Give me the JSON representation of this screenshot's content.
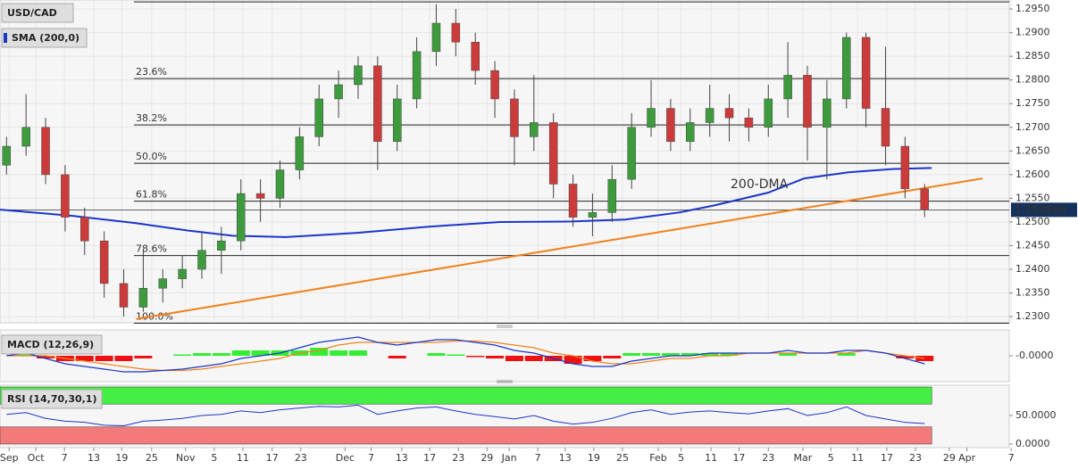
{
  "chart_data": [
    {
      "type": "candlestick",
      "title": "USD/CAD",
      "x": [
        1,
        4,
        7,
        10,
        13,
        16,
        19,
        22,
        25,
        28,
        31,
        34,
        37,
        40,
        43,
        46,
        49,
        52,
        55,
        58,
        61,
        64,
        67,
        70,
        73,
        76,
        79,
        82,
        85,
        88,
        91,
        94,
        97,
        100,
        103,
        106,
        109,
        112,
        115,
        118,
        121,
        124,
        127,
        130,
        133,
        136,
        139,
        142
      ],
      "open": [
        1.262,
        1.266,
        1.27,
        1.26,
        1.251,
        1.246,
        1.237,
        1.232,
        1.236,
        1.238,
        1.24,
        1.244,
        1.246,
        1.256,
        1.255,
        1.261,
        1.268,
        1.276,
        1.279,
        1.283,
        1.267,
        1.276,
        1.286,
        1.292,
        1.288,
        1.282,
        1.276,
        1.268,
        1.271,
        1.258,
        1.251,
        1.252,
        1.259,
        1.27,
        1.274,
        1.267,
        1.271,
        1.274,
        1.272,
        1.27,
        1.276,
        1.281,
        1.27,
        1.276,
        1.289,
        1.274,
        1.266,
        1.257
      ],
      "high": [
        1.268,
        1.277,
        1.272,
        1.262,
        1.253,
        1.248,
        1.24,
        1.244,
        1.24,
        1.243,
        1.248,
        1.249,
        1.259,
        1.259,
        1.263,
        1.27,
        1.279,
        1.282,
        1.285,
        1.285,
        1.279,
        1.289,
        1.296,
        1.295,
        1.29,
        1.284,
        1.278,
        1.281,
        1.273,
        1.26,
        1.256,
        1.262,
        1.273,
        1.28,
        1.276,
        1.274,
        1.279,
        1.277,
        1.274,
        1.279,
        1.288,
        1.283,
        1.28,
        1.29,
        1.29,
        1.287,
        1.268,
        1.258
      ],
      "low": [
        1.26,
        1.264,
        1.258,
        1.248,
        1.243,
        1.234,
        1.23,
        1.231,
        1.233,
        1.236,
        1.238,
        1.239,
        1.244,
        1.25,
        1.253,
        1.259,
        1.266,
        1.272,
        1.276,
        1.261,
        1.265,
        1.274,
        1.283,
        1.285,
        1.279,
        1.272,
        1.262,
        1.265,
        1.255,
        1.249,
        1.247,
        1.25,
        1.257,
        1.268,
        1.265,
        1.265,
        1.268,
        1.267,
        1.267,
        1.268,
        1.272,
        1.263,
        1.259,
        1.274,
        1.27,
        1.262,
        1.255,
        1.251
      ],
      "close": [
        1.266,
        1.27,
        1.26,
        1.251,
        1.246,
        1.237,
        1.232,
        1.236,
        1.238,
        1.24,
        1.244,
        1.246,
        1.256,
        1.255,
        1.261,
        1.268,
        1.276,
        1.279,
        1.283,
        1.267,
        1.276,
        1.286,
        1.292,
        1.288,
        1.282,
        1.276,
        1.268,
        1.271,
        1.258,
        1.251,
        1.252,
        1.259,
        1.27,
        1.274,
        1.267,
        1.271,
        1.274,
        1.272,
        1.27,
        1.276,
        1.281,
        1.27,
        1.276,
        1.289,
        1.274,
        1.266,
        1.257,
        1.2526
      ],
      "colors": {
        "up": "#3d9b3d",
        "down": "#cc3b3b"
      },
      "series": [
        {
          "name": "SMA (200,0)",
          "color": "#1a36c8",
          "x": [
            0,
            11,
            20.6,
            28.8,
            35.7,
            43.9,
            54.9,
            65.8,
            76.8,
            87.8,
            96,
            104.3,
            109.7,
            118,
            123.5,
            130.3,
            137.2,
            143.1
          ],
          "values": [
            1.2526,
            1.2513,
            1.2498,
            1.2482,
            1.2471,
            1.2468,
            1.2477,
            1.249,
            1.25,
            1.2501,
            1.2505,
            1.252,
            1.2535,
            1.2562,
            1.2592,
            1.2605,
            1.2612,
            1.2614
          ]
        },
        {
          "color": "#f0821e",
          "x": [
            20.9,
            150.9
          ],
          "values": [
            1.2295,
            1.2592
          ]
        }
      ],
      "annotation": {
        "text": "200-DMA",
        "color": "#7a4fc8"
      },
      "fibonacci": {
        "values": [
          1.2965,
          1.2803,
          1.2705,
          1.2624,
          1.2544,
          1.2429,
          1.2286
        ],
        "labels": [
          null,
          "23.6%",
          "38.2%",
          "50.0%",
          "61.8%",
          "78.6%",
          "100.0%"
        ]
      },
      "last_price": {
        "value": 1.25256,
        "label": "1.252560"
      },
      "xlim": [
        0,
        155
      ],
      "ylim": [
        1.2287,
        1.2969
      ],
      "yticks": [
        {
          "value": 1.295,
          "label": "1.2950"
        },
        {
          "value": 1.29,
          "label": "1.2900"
        },
        {
          "value": 1.285,
          "label": "1.2850"
        },
        {
          "value": 1.28,
          "label": "1.2800"
        },
        {
          "value": 1.275,
          "label": "1.2750"
        },
        {
          "value": 1.27,
          "label": "1.2700"
        },
        {
          "value": 1.265,
          "label": "1.2650"
        },
        {
          "value": 1.26,
          "label": "1.2600"
        },
        {
          "value": 1.255,
          "label": "1.2550"
        },
        {
          "value": 1.25,
          "label": "1.2500"
        },
        {
          "value": 1.245,
          "label": "1.2450"
        },
        {
          "value": 1.24,
          "label": "1.2400"
        },
        {
          "value": 1.235,
          "label": "1.2350"
        },
        {
          "value": 1.23,
          "label": "1.2300"
        }
      ],
      "xticks": [
        {
          "value": 1.4,
          "label": "Sep"
        },
        {
          "value": 5.5,
          "label": "Oct"
        },
        {
          "value": 9.9,
          "label": "7"
        },
        {
          "value": 14.4,
          "label": "13"
        },
        {
          "value": 18.7,
          "label": "19"
        },
        {
          "value": 23.3,
          "label": "25"
        },
        {
          "value": 28.5,
          "label": "Nov"
        },
        {
          "value": 32.9,
          "label": "5"
        },
        {
          "value": 37.3,
          "label": "11"
        },
        {
          "value": 41.8,
          "label": "17"
        },
        {
          "value": 46.2,
          "label": "23"
        },
        {
          "value": 53,
          "label": "Dec"
        },
        {
          "value": 57,
          "label": "7"
        },
        {
          "value": 61.7,
          "label": "13"
        },
        {
          "value": 66,
          "label": "17"
        },
        {
          "value": 70.4,
          "label": "23"
        },
        {
          "value": 74.8,
          "label": "29"
        },
        {
          "value": 78.2,
          "label": "Jan"
        },
        {
          "value": 82.6,
          "label": "7"
        },
        {
          "value": 86.8,
          "label": "13"
        },
        {
          "value": 91.2,
          "label": "19"
        },
        {
          "value": 95.6,
          "label": "25"
        },
        {
          "value": 101.1,
          "label": "Feb"
        },
        {
          "value": 104.6,
          "label": "5"
        },
        {
          "value": 109.2,
          "label": "11"
        },
        {
          "value": 113.5,
          "label": "17"
        },
        {
          "value": 118,
          "label": "23"
        },
        {
          "value": 123.3,
          "label": "Mar"
        },
        {
          "value": 127.6,
          "label": "5"
        },
        {
          "value": 131.7,
          "label": "11"
        },
        {
          "value": 136.2,
          "label": "17"
        },
        {
          "value": 140.6,
          "label": "23"
        },
        {
          "value": 145.8,
          "label": "29"
        },
        {
          "value": 148.5,
          "label": "Apr"
        },
        {
          "value": 155.3,
          "label": "7"
        }
      ],
      "grid": true
    },
    {
      "type": "macd",
      "title": "MACD (12,26,9)",
      "macd": {
        "color": "#1a36c8",
        "values": [
          0,
          0.001,
          -0.001,
          -0.003,
          -0.004,
          -0.005,
          -0.006,
          -0.006,
          -0.0055,
          -0.005,
          -0.004,
          -0.003,
          -0.001,
          0,
          0.001,
          0.003,
          0.005,
          0.006,
          0.007,
          0.005,
          0.004,
          0.005,
          0.006,
          0.006,
          0.005,
          0.004,
          0.002,
          0.001,
          -0.001,
          -0.003,
          -0.004,
          -0.004,
          -0.002,
          -0.001,
          0,
          0,
          0.001,
          0.001,
          0.001,
          0.001,
          0.002,
          0.001,
          0.001,
          0.002,
          0.002,
          0.001,
          -0.001,
          -0.003
        ]
      },
      "signal": {
        "color": "#f0821e",
        "values": [
          0,
          0,
          0,
          -0.001,
          -0.002,
          -0.003,
          -0.004,
          -0.005,
          -0.0055,
          -0.0055,
          -0.005,
          -0.004,
          -0.003,
          -0.002,
          -0.001,
          0.001,
          0.002,
          0.004,
          0.005,
          0.005,
          0.005,
          0.005,
          0.005,
          0.0055,
          0.0055,
          0.005,
          0.004,
          0.003,
          0.001,
          0,
          -0.002,
          -0.003,
          -0.003,
          -0.002,
          -0.001,
          -0.001,
          0,
          0,
          0.001,
          0.001,
          0.001,
          0.001,
          0.001,
          0.001,
          0.002,
          0.001,
          0,
          -0.001
        ]
      },
      "histogram": {
        "colors": {
          "up": "#33ee33",
          "down": "#ee1111"
        },
        "values": [
          0,
          0.001,
          -0.001,
          -0.002,
          -0.002,
          -0.002,
          -0.002,
          -0.001,
          0,
          0.0005,
          0.001,
          0.001,
          0.002,
          0.002,
          0.002,
          0.002,
          0.003,
          0.002,
          0.002,
          0,
          -0.001,
          0,
          0.001,
          0.0005,
          -0.0005,
          -0.001,
          -0.002,
          -0.002,
          -0.002,
          -0.003,
          -0.002,
          -0.001,
          0.001,
          0.001,
          0.001,
          0.001,
          0.001,
          0.001,
          0,
          0,
          0.001,
          0,
          0,
          0.001,
          0,
          0,
          -0.001,
          -0.002
        ]
      },
      "ylim": [
        -0.009,
        0.009
      ],
      "yticks": [
        {
          "value": 0,
          "label": "-0.0000"
        }
      ]
    },
    {
      "type": "rsi",
      "title": "RSI (14,70,30,1)",
      "color": "#1a36c8",
      "values": [
        52,
        55,
        45,
        40,
        38,
        33,
        32,
        40,
        42,
        45,
        50,
        52,
        58,
        55,
        60,
        63,
        66,
        65,
        68,
        52,
        58,
        63,
        65,
        58,
        52,
        48,
        44,
        50,
        40,
        35,
        38,
        45,
        55,
        60,
        52,
        56,
        58,
        55,
        53,
        58,
        62,
        50,
        55,
        65,
        50,
        44,
        38,
        36
      ],
      "upper_band": {
        "value": 70,
        "color": "#44ee44"
      },
      "lower_band": {
        "value": 30,
        "color": "#f27a7a"
      },
      "ylim": [
        0,
        100
      ],
      "yticks": [
        {
          "value": 50,
          "label": "50.0000"
        },
        {
          "value": 0,
          "label": "0.0000"
        }
      ]
    }
  ]
}
